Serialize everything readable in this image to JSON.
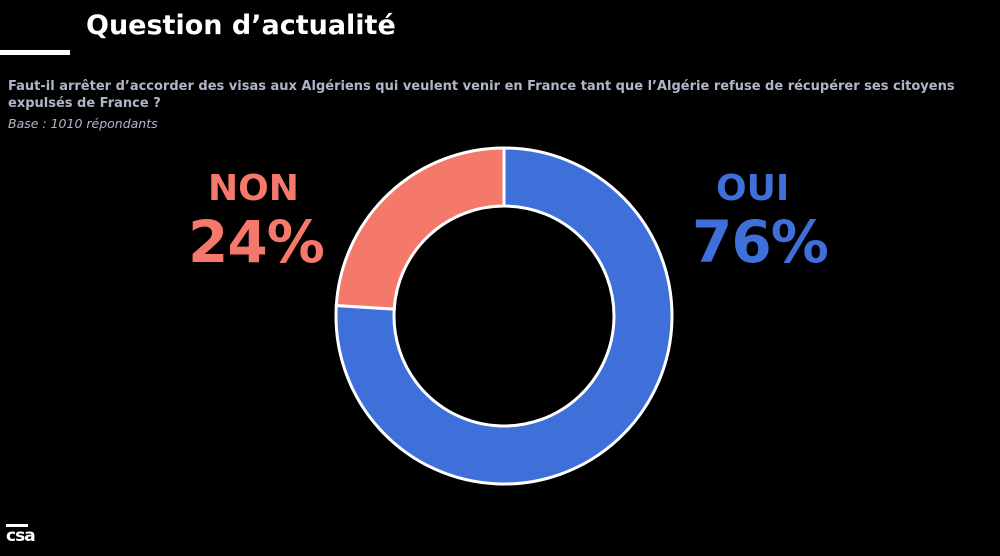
{
  "header": {
    "title": "Question d’actualité"
  },
  "question": "Faut-il arrêter d’accorder des visas aux Algériens qui veulent venir en France tant que l’Algérie refuse de récupérer ses citoyens expulsés de France ?",
  "base": "Base : 1010 répondants",
  "logo": "csa",
  "colors": {
    "background": "#000000",
    "oui": "#3f6fd9",
    "non": "#f4796b",
    "question_text": "#aeb7c9"
  },
  "chart_data": {
    "type": "pie",
    "variant": "donut",
    "slices": [
      {
        "label": "OUI",
        "value": 76,
        "display": "76%",
        "color": "#3f6fd9"
      },
      {
        "label": "NON",
        "value": 24,
        "display": "24%",
        "color": "#f4796b"
      }
    ]
  }
}
